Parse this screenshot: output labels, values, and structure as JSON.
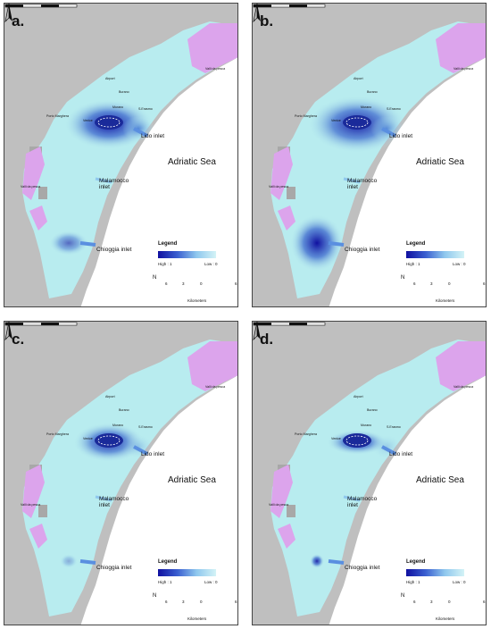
{
  "sea_label": "Adriatic Sea",
  "inlets": {
    "lido": "Lido inlet",
    "malamocco": "Malamocco inlet",
    "chioggia": "Chioggia inlet"
  },
  "places": {
    "airport": "Airport",
    "burano": "Burano",
    "murano": "Murano",
    "venice": "Venice",
    "s_erasmo": "S.Erasmo",
    "porto_marghera": "Porto Marghera",
    "valli_pesca_nw": "Valli da pesca",
    "valli_pesca_ne": "Valli da pesca"
  },
  "legend": {
    "title": "Legend",
    "high": "High : 1",
    "low": "Low : 0"
  },
  "north_label": "N",
  "scale": {
    "ticks": [
      "6",
      "3",
      "0",
      "6"
    ],
    "units": "Kilometers"
  },
  "colors": {
    "land": "#bfbfbf",
    "sea": "#ffffff",
    "lagoon_low": "#b8ecef",
    "valli_da_pesca": "#dca4ec",
    "high": "#1010a0"
  },
  "panels": [
    {
      "letter": "a.",
      "intensity": "strong-venice, strong-lido, moderate-chioggia"
    },
    {
      "letter": "b.",
      "intensity": "strong-venice, very-strong-chioggia"
    },
    {
      "letter": "c.",
      "intensity": "strong-venice, weak elsewhere"
    },
    {
      "letter": "d.",
      "intensity": "strong-venice, spot-chioggia"
    }
  ]
}
